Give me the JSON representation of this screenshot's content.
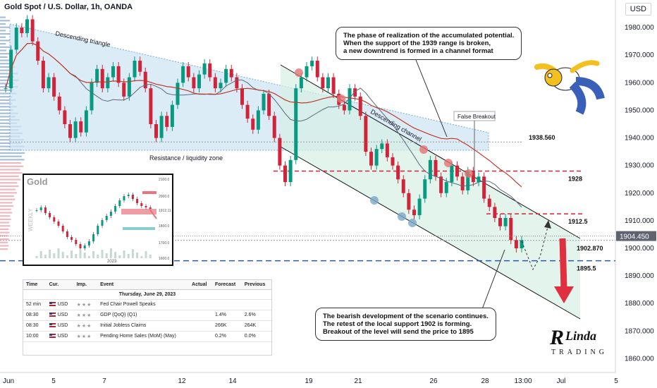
{
  "header": {
    "title": "Gold Spot / U.S. Dollar, 1h, OANDA",
    "currency": "USD"
  },
  "chart_data": {
    "type": "candlestick",
    "ylim": [
      1855,
      1990
    ],
    "y_ticks": [
      "1980.000",
      "1970.000",
      "1960.000",
      "1950.000",
      "1940.000",
      "1930.000",
      "1920.000",
      "1910.000",
      "1900.000",
      "1890.000",
      "1880.000",
      "1870.000",
      "1860.000"
    ],
    "x_ticks": [
      "Jun",
      "5",
      "7",
      "12",
      "14",
      "19",
      "21",
      "26",
      "28",
      "13:00",
      "Jul",
      "5"
    ],
    "current_price": "1904.450",
    "close_path": [
      1958,
      1972,
      1980,
      1978,
      1983,
      1975,
      1968,
      1958,
      1962,
      1955,
      1950,
      1945,
      1940,
      1946,
      1942,
      1950,
      1960,
      1965,
      1958,
      1962,
      1966,
      1960,
      1955,
      1962,
      1968,
      1964,
      1958,
      1945,
      1940,
      1948,
      1944,
      1952,
      1960,
      1966,
      1962,
      1958,
      1963,
      1967,
      1962,
      1958,
      1960,
      1965,
      1962,
      1958,
      1952,
      1947,
      1943,
      1950,
      1956,
      1948,
      1940,
      1930,
      1924,
      1932,
      1958,
      1962,
      1966,
      1968,
      1962,
      1958,
      1962,
      1956,
      1952,
      1950,
      1958,
      1955,
      1948,
      1935,
      1930,
      1936,
      1938,
      1933,
      1930,
      1925,
      1920,
      1914,
      1912,
      1918,
      1925,
      1932,
      1926,
      1920,
      1924,
      1930,
      1926,
      1921,
      1928,
      1924,
      1926,
      1918,
      1915,
      1911,
      1908,
      1911,
      1903,
      1900,
      1903
    ],
    "levels": [
      {
        "label": "1938.560",
        "value": 1938.56,
        "style": "dotted-gray"
      },
      {
        "label": "1928",
        "value": 1928,
        "style": "dashed-red"
      },
      {
        "label": "1912.5",
        "value": 1912.5,
        "style": "dashed-red"
      },
      {
        "label": "1902.870",
        "value": 1902.87,
        "style": "dotted-gray"
      },
      {
        "label": "1895.5",
        "value": 1895.5,
        "style": "dashed-blue"
      }
    ],
    "annotations": {
      "triangle_label": "Descending triangle",
      "channel_label": "Descending channel",
      "zone_label": "Resistance / liquidity zone",
      "false_breakout": "False Breakout"
    },
    "colors": {
      "up": "#089981",
      "down": "#d0243a",
      "triangle": "#4a90c8",
      "channel_fill": "#d7efe4",
      "red_level": "#d0243a",
      "blue_level": "#2a5aa8"
    }
  },
  "callouts": {
    "top": [
      "The phase of realization of the accumulated potential.",
      "When the support of the 1939 range is broken,",
      "a new downtrend is formed in a channel format"
    ],
    "bottom": [
      "The bearish development of the scenario continues.",
      "The retest of the local support 1902 is forming.",
      "Breakout of the level will send the price to 1895"
    ]
  },
  "inset": {
    "title": "Gold",
    "side_label": "WEEKLY",
    "year": "2023",
    "ticks": [
      "2100.0",
      "2000.0",
      "1912.11",
      "1800.0",
      "1700.0",
      "1600.0"
    ]
  },
  "calendar": {
    "headers": [
      "Time",
      "Cur.",
      "Imp.",
      "Event",
      "Actual",
      "Forecast",
      "Previous"
    ],
    "date": "Thursday, June 29, 2023",
    "rows": [
      {
        "time": "52 min",
        "cur": "USD",
        "imp": "★★★",
        "event": "Fed Chair Powell Speaks",
        "actual": "",
        "forecast": "",
        "previous": ""
      },
      {
        "time": "08:30",
        "cur": "USD",
        "imp": "★★★",
        "event": "GDP (QoQ) (Q1)",
        "actual": "",
        "forecast": "1.4%",
        "previous": "2.6%"
      },
      {
        "time": "08:30",
        "cur": "USD",
        "imp": "★★★",
        "event": "Initial Jobless Claims",
        "actual": "",
        "forecast": "266K",
        "previous": "264K"
      },
      {
        "time": "10:00",
        "cur": "USD",
        "imp": "★★★",
        "event": "Pending Home Sales (MoM) (May)",
        "actual": "",
        "forecast": "0.2%",
        "previous": "0.0%"
      }
    ]
  },
  "logo": {
    "mark": "R",
    "name": "Linda",
    "sub": "TRADING"
  }
}
